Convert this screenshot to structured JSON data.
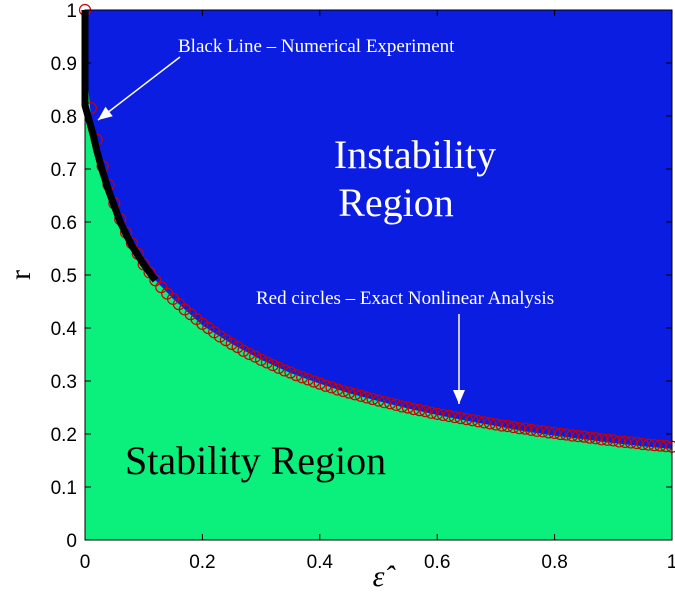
{
  "chart_data": {
    "type": "area",
    "xlabel": "ε̂",
    "ylabel": "r",
    "xlim": [
      0,
      1
    ],
    "ylim": [
      0,
      1
    ],
    "x_ticks": [
      "0",
      "0.2",
      "0.4",
      "0.6",
      "0.8",
      "1"
    ],
    "y_ticks": [
      "0",
      "0.1",
      "0.2",
      "0.3",
      "0.4",
      "0.5",
      "0.6",
      "0.7",
      "0.8",
      "0.9",
      "1"
    ],
    "grid": false,
    "colors": {
      "instability_fill": "#0a1de0",
      "stability_fill": "#0bf07c",
      "numerical_line": "#000000",
      "exact_circles": "#cc0000"
    },
    "regions": {
      "instability": "Instability\nRegion",
      "stability": "Stability Region"
    },
    "annotations": {
      "numerical": "Black Line – Numerical Experiment",
      "exact": "Red circles – Exact Nonlinear Analysis"
    },
    "boundary_curve": {
      "x": [
        0.0,
        0.005,
        0.01,
        0.015,
        0.02,
        0.03,
        0.04,
        0.05,
        0.06,
        0.07,
        0.08,
        0.1,
        0.12,
        0.15,
        0.2,
        0.25,
        0.3,
        0.35,
        0.4,
        0.45,
        0.5,
        0.55,
        0.6,
        0.65,
        0.7,
        0.75,
        0.8,
        0.85,
        0.9,
        0.95,
        1.0
      ],
      "y": [
        1.0,
        0.86,
        0.8,
        0.76,
        0.735,
        0.695,
        0.66,
        0.63,
        0.6,
        0.577,
        0.555,
        0.52,
        0.49,
        0.455,
        0.405,
        0.37,
        0.34,
        0.315,
        0.295,
        0.277,
        0.262,
        0.248,
        0.236,
        0.225,
        0.215,
        0.205,
        0.197,
        0.19,
        0.183,
        0.177,
        0.172
      ]
    },
    "numerical_line": {
      "x": [
        0.0,
        0.0,
        0.005,
        0.01,
        0.015,
        0.02,
        0.03,
        0.04,
        0.05,
        0.06,
        0.07,
        0.08,
        0.1,
        0.12
      ],
      "y": [
        1.0,
        0.82,
        0.8,
        0.78,
        0.76,
        0.735,
        0.695,
        0.66,
        0.63,
        0.6,
        0.577,
        0.555,
        0.52,
        0.49
      ]
    },
    "exact_circles": {
      "x": [
        0.0,
        0.01,
        0.02,
        0.03,
        0.04,
        0.05,
        0.06,
        0.07,
        0.08,
        0.09,
        0.1,
        0.11,
        0.12,
        0.13,
        0.14,
        0.15,
        0.16,
        0.17,
        0.18,
        0.19,
        0.2,
        0.21,
        0.22,
        0.23,
        0.24,
        0.25,
        0.26,
        0.27,
        0.28,
        0.29,
        0.3,
        0.31,
        0.32,
        0.33,
        0.34,
        0.35,
        0.36,
        0.37,
        0.38,
        0.39,
        0.4,
        0.41,
        0.42,
        0.43,
        0.44,
        0.45,
        0.46,
        0.47,
        0.48,
        0.49,
        0.5,
        0.51,
        0.52,
        0.53,
        0.54,
        0.55,
        0.56,
        0.57,
        0.58,
        0.59,
        0.6,
        0.61,
        0.62,
        0.63,
        0.64,
        0.65,
        0.66,
        0.67,
        0.68,
        0.69,
        0.7,
        0.71,
        0.72,
        0.73,
        0.74,
        0.75,
        0.76,
        0.77,
        0.78,
        0.79,
        0.8,
        0.81,
        0.82,
        0.83,
        0.84,
        0.85,
        0.86,
        0.87,
        0.88,
        0.89,
        0.9,
        0.91,
        0.92,
        0.93,
        0.94,
        0.95,
        0.96,
        0.97,
        0.98,
        0.99,
        1.0
      ],
      "y": [
        1.0,
        0.815,
        0.755,
        0.705,
        0.67,
        0.635,
        0.605,
        0.58,
        0.56,
        0.54,
        0.52,
        0.505,
        0.49,
        0.477,
        0.465,
        0.455,
        0.445,
        0.435,
        0.426,
        0.417,
        0.408,
        0.4,
        0.392,
        0.384,
        0.377,
        0.37,
        0.364,
        0.357,
        0.351,
        0.346,
        0.34,
        0.335,
        0.33,
        0.325,
        0.32,
        0.316,
        0.311,
        0.307,
        0.303,
        0.299,
        0.295,
        0.291,
        0.288,
        0.284,
        0.281,
        0.278,
        0.275,
        0.272,
        0.269,
        0.266,
        0.263,
        0.26,
        0.258,
        0.255,
        0.252,
        0.25,
        0.247,
        0.245,
        0.243,
        0.24,
        0.238,
        0.236,
        0.234,
        0.232,
        0.23,
        0.228,
        0.226,
        0.224,
        0.222,
        0.22,
        0.218,
        0.216,
        0.215,
        0.213,
        0.211,
        0.21,
        0.208,
        0.206,
        0.205,
        0.203,
        0.202,
        0.2,
        0.199,
        0.197,
        0.196,
        0.195,
        0.193,
        0.192,
        0.19,
        0.189,
        0.188,
        0.186,
        0.185,
        0.184,
        0.183,
        0.181,
        0.18,
        0.179,
        0.178,
        0.177,
        0.176
      ]
    }
  }
}
